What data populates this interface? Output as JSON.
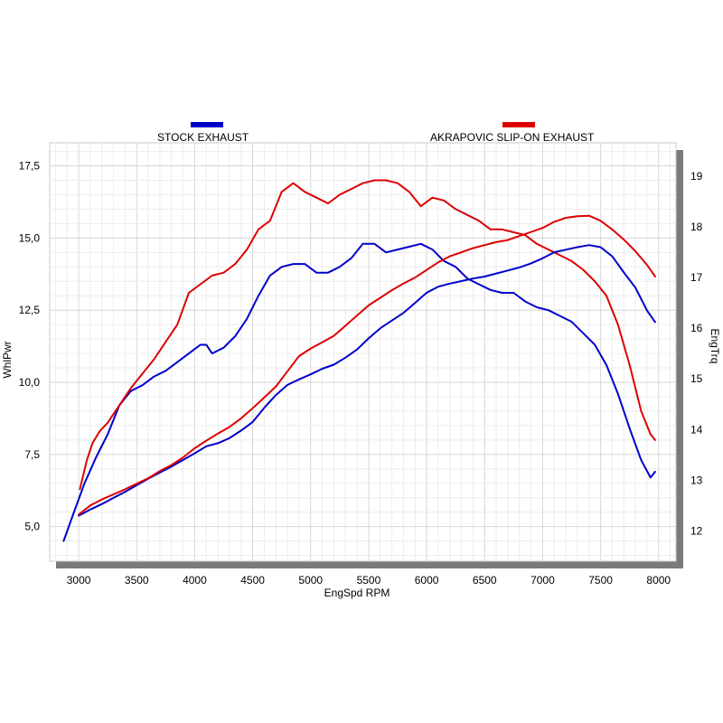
{
  "chart_data": {
    "type": "line",
    "title": "",
    "xlabel": "EngSpd  RPM",
    "ylabel_left": "WhlPwr",
    "ylabel_right": "EngTrq",
    "xlim": [
      2750,
      8150
    ],
    "ylim_left": [
      3.8,
      18.3
    ],
    "ylim_right": [
      11.4,
      19.66
    ],
    "x_ticks": [
      "3000",
      "3500",
      "4000",
      "4500",
      "5000",
      "5500",
      "6000",
      "6500",
      "7000",
      "7500",
      "8000"
    ],
    "x_tick_values": [
      3000,
      3500,
      4000,
      4500,
      5000,
      5500,
      6000,
      6500,
      7000,
      7500,
      8000
    ],
    "y_left_ticks": [
      "5,0",
      "7,5",
      "10,0",
      "12,5",
      "15,0",
      "17,5"
    ],
    "y_left_tick_values": [
      5.0,
      7.5,
      10.0,
      12.5,
      15.0,
      17.5
    ],
    "y_right_ticks": [
      "12",
      "13",
      "14",
      "15",
      "16",
      "17",
      "18",
      "19"
    ],
    "y_right_tick_values": [
      12,
      13,
      14,
      15,
      16,
      17,
      18,
      19
    ],
    "grid": true,
    "legend": [
      {
        "label": "STOCK EXHAUST",
        "color": "#0000cc"
      },
      {
        "label": "AKRAPOVIC SLIP-ON EXHAUST",
        "color": "#dd0000"
      }
    ],
    "series": [
      {
        "name": "STOCK EXHAUST",
        "measure": "power",
        "axis": "left",
        "color": "#0000cc",
        "x": [
          2870,
          2950,
          3050,
          3150,
          3250,
          3350,
          3450,
          3550,
          3650,
          3750,
          3850,
          3950,
          4050,
          4100,
          4150,
          4250,
          4350,
          4450,
          4550,
          4650,
          4750,
          4850,
          4950,
          5050,
          5150,
          5250,
          5350,
          5450,
          5550,
          5650,
          5750,
          5850,
          5950,
          6050,
          6150,
          6250,
          6350,
          6450,
          6550,
          6650,
          6750,
          6850,
          6950,
          7050,
          7150,
          7250,
          7350,
          7450,
          7550,
          7650,
          7750,
          7850,
          7930,
          7970
        ],
        "values": [
          4.5,
          5.4,
          6.5,
          7.4,
          8.2,
          9.2,
          9.7,
          9.9,
          10.2,
          10.4,
          10.7,
          11.0,
          11.3,
          11.3,
          11.0,
          11.2,
          11.6,
          12.2,
          13.0,
          13.7,
          14.0,
          14.1,
          14.1,
          13.8,
          13.8,
          14.0,
          14.3,
          14.8,
          14.8,
          14.5,
          14.6,
          14.7,
          14.8,
          14.6,
          14.2,
          14.0,
          13.6,
          13.4,
          13.2,
          13.1,
          13.1,
          12.8,
          12.6,
          12.5,
          12.3,
          12.1,
          11.7,
          11.3,
          10.6,
          9.6,
          8.4,
          7.3,
          6.7,
          6.9
        ]
      },
      {
        "name": "AKRAPOVIC SLIP-ON EXHAUST",
        "measure": "power",
        "axis": "left",
        "color": "#dd0000",
        "x": [
          3010,
          3070,
          3120,
          3180,
          3250,
          3350,
          3450,
          3550,
          3650,
          3750,
          3850,
          3950,
          4050,
          4150,
          4250,
          4350,
          4450,
          4550,
          4650,
          4750,
          4850,
          4950,
          5050,
          5150,
          5250,
          5350,
          5450,
          5550,
          5650,
          5750,
          5850,
          5950,
          6050,
          6150,
          6250,
          6350,
          6450,
          6550,
          6650,
          6750,
          6850,
          6950,
          7050,
          7150,
          7250,
          7350,
          7450,
          7550,
          7650,
          7750,
          7850,
          7930,
          7970
        ],
        "values": [
          6.3,
          7.3,
          7.9,
          8.3,
          8.6,
          9.2,
          9.8,
          10.3,
          10.8,
          11.4,
          12.0,
          13.1,
          13.4,
          13.7,
          13.8,
          14.1,
          14.6,
          15.3,
          15.6,
          16.6,
          16.9,
          16.6,
          16.4,
          16.2,
          16.5,
          16.7,
          16.9,
          17.0,
          17.0,
          16.9,
          16.6,
          16.1,
          16.4,
          16.3,
          16.0,
          15.8,
          15.6,
          15.3,
          15.3,
          15.2,
          15.1,
          14.8,
          14.6,
          14.4,
          14.2,
          13.9,
          13.5,
          13.0,
          12.0,
          10.6,
          9.0,
          8.2,
          8.0
        ]
      },
      {
        "name": "STOCK EXHAUST",
        "measure": "torque",
        "axis": "right",
        "color": "#0000cc",
        "x": [
          3000,
          3100,
          3200,
          3300,
          3400,
          3500,
          3600,
          3700,
          3800,
          3900,
          4000,
          4100,
          4200,
          4300,
          4400,
          4500,
          4600,
          4700,
          4800,
          4900,
          5000,
          5100,
          5200,
          5300,
          5400,
          5500,
          5600,
          5700,
          5800,
          5900,
          6000,
          6100,
          6200,
          6300,
          6400,
          6500,
          6600,
          6700,
          6800,
          6900,
          7000,
          7100,
          7200,
          7300,
          7400,
          7500,
          7600,
          7700,
          7800,
          7900,
          7970
        ],
        "values": [
          12.3,
          12.42,
          12.53,
          12.65,
          12.77,
          12.9,
          13.03,
          13.15,
          13.27,
          13.4,
          13.53,
          13.67,
          13.73,
          13.83,
          13.98,
          14.15,
          14.43,
          14.68,
          14.88,
          14.99,
          15.09,
          15.2,
          15.28,
          15.42,
          15.58,
          15.8,
          16.0,
          16.15,
          16.3,
          16.5,
          16.7,
          16.82,
          16.88,
          16.93,
          16.98,
          17.02,
          17.08,
          17.14,
          17.2,
          17.28,
          17.38,
          17.5,
          17.55,
          17.6,
          17.64,
          17.6,
          17.42,
          17.1,
          16.8,
          16.35,
          16.12
        ]
      },
      {
        "name": "AKRAPOVIC SLIP-ON EXHAUST",
        "measure": "torque",
        "axis": "right",
        "color": "#dd0000",
        "x": [
          3000,
          3100,
          3200,
          3300,
          3400,
          3500,
          3600,
          3700,
          3800,
          3900,
          4000,
          4100,
          4200,
          4300,
          4400,
          4500,
          4600,
          4700,
          4800,
          4900,
          5000,
          5100,
          5200,
          5300,
          5400,
          5500,
          5600,
          5700,
          5800,
          5900,
          6000,
          6100,
          6200,
          6300,
          6400,
          6500,
          6600,
          6700,
          6800,
          6900,
          7000,
          7100,
          7200,
          7300,
          7400,
          7500,
          7600,
          7700,
          7800,
          7900,
          7970
        ],
        "values": [
          12.32,
          12.5,
          12.62,
          12.72,
          12.82,
          12.93,
          13.04,
          13.18,
          13.3,
          13.45,
          13.63,
          13.78,
          13.92,
          14.05,
          14.22,
          14.42,
          14.63,
          14.85,
          15.15,
          15.45,
          15.6,
          15.72,
          15.85,
          16.05,
          16.25,
          16.45,
          16.6,
          16.75,
          16.88,
          17.0,
          17.15,
          17.3,
          17.42,
          17.5,
          17.58,
          17.64,
          17.7,
          17.74,
          17.82,
          17.9,
          17.98,
          18.1,
          18.18,
          18.21,
          18.22,
          18.12,
          17.95,
          17.75,
          17.52,
          17.25,
          17.02
        ]
      }
    ]
  }
}
